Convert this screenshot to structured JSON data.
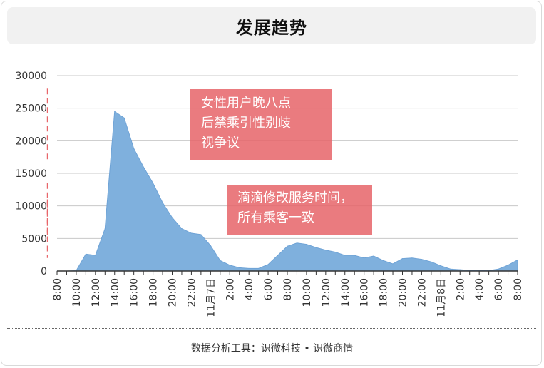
{
  "title": "发展趋势",
  "footer": "数据分析工具：识微科技 • 识微商情",
  "annotations": [
    {
      "text": "女性用户晚八点\n后禁乘引性别歧\n视争议"
    },
    {
      "text": "滴滴修改服务时间，\n所有乘客一致"
    }
  ],
  "colors": {
    "area": "#7fb0dd",
    "annotation": "#e8666a",
    "grid": "#c8c8c8",
    "axis": "#333333"
  },
  "chart_data": {
    "type": "area",
    "ylim": [
      0,
      30000
    ],
    "yticks": [
      0,
      5000,
      10000,
      15000,
      20000,
      25000,
      30000
    ],
    "grid": true,
    "x_tick_labels": [
      "8:00",
      "10:00",
      "12:00",
      "14:00",
      "16:00",
      "18:00",
      "20:00",
      "22:00",
      "11月7日",
      "2:00",
      "4:00",
      "6:00",
      "8:00",
      "10:00",
      "12:00",
      "14:00",
      "16:00",
      "18:00",
      "20:00",
      "22:00",
      "11月8日",
      "2:00",
      "4:00",
      "6:00",
      "8:00"
    ],
    "x": [
      "11-06 8:00",
      "9:00",
      "10:00",
      "11:00",
      "12:00",
      "13:00",
      "14:00",
      "15:00",
      "16:00",
      "17:00",
      "18:00",
      "19:00",
      "20:00",
      "21:00",
      "22:00",
      "23:00",
      "11-07 0:00",
      "1:00",
      "2:00",
      "3:00",
      "4:00",
      "5:00",
      "6:00",
      "7:00",
      "8:00",
      "9:00",
      "10:00",
      "11:00",
      "12:00",
      "13:00",
      "14:00",
      "15:00",
      "16:00",
      "17:00",
      "18:00",
      "19:00",
      "20:00",
      "21:00",
      "22:00",
      "23:00",
      "11-08 0:00",
      "1:00",
      "2:00",
      "3:00",
      "4:00",
      "5:00",
      "6:00",
      "7:00",
      "8:00"
    ],
    "values": [
      0,
      0,
      50,
      2600,
      2400,
      6500,
      24500,
      23500,
      18800,
      16000,
      13500,
      10500,
      8200,
      6500,
      5800,
      5600,
      3900,
      1600,
      900,
      500,
      400,
      400,
      1000,
      2400,
      3800,
      4300,
      4100,
      3600,
      3200,
      2900,
      2400,
      2400,
      2000,
      2300,
      1600,
      1100,
      1900,
      2000,
      1800,
      1400,
      800,
      300,
      200,
      100,
      80,
      70,
      300,
      900,
      1700
    ],
    "annotation_lines": [
      {
        "type": "dashed_horizontal",
        "y": 24500,
        "from": "11-06 14:00",
        "to": "11-06 21:00"
      },
      {
        "type": "dashed_vertical",
        "x": "11-06 21:00",
        "y_range": [
          17000,
          28000
        ]
      },
      {
        "type": "dashed_vertical",
        "x": "11-07 18:00",
        "y_range": [
          5500,
          13500
        ]
      },
      {
        "type": "dashed_diagonal",
        "from": [
          "11-07 18:00",
          11000
        ],
        "to": [
          "11-07 20:00",
          2000
        ]
      }
    ]
  }
}
